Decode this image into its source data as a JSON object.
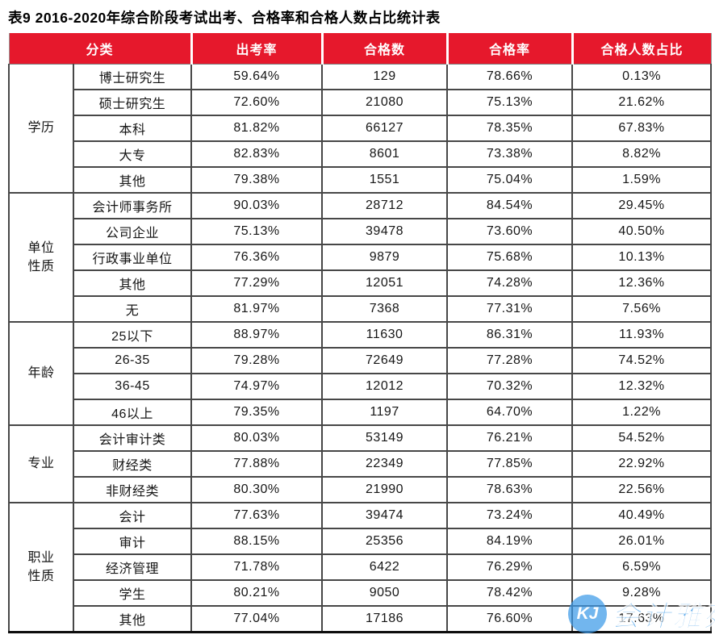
{
  "page": {
    "title": "表9  2016-2020年综合阶段考试出考、合格率和合格人数占比统计表"
  },
  "colors": {
    "header_bg": "#e6182c",
    "header_text": "#ffffff",
    "watermark_blue": "#2f93e6"
  },
  "table": {
    "headers": [
      "分类",
      "出考率",
      "合格数",
      "合格率",
      "合格人数占比"
    ],
    "groups": [
      {
        "label": "学历",
        "rows": [
          [
            "博士研究生",
            "59.64%",
            "129",
            "78.66%",
            "0.13%"
          ],
          [
            "硕士研究生",
            "72.60%",
            "21080",
            "75.13%",
            "21.62%"
          ],
          [
            "本科",
            "81.82%",
            "66127",
            "78.35%",
            "67.83%"
          ],
          [
            "大专",
            "82.83%",
            "8601",
            "73.38%",
            "8.82%"
          ],
          [
            "其他",
            "79.38%",
            "1551",
            "75.04%",
            "1.59%"
          ]
        ]
      },
      {
        "label": "单位性质",
        "rows": [
          [
            "会计师事务所",
            "90.03%",
            "28712",
            "84.54%",
            "29.45%"
          ],
          [
            "公司企业",
            "75.13%",
            "39478",
            "73.60%",
            "40.50%"
          ],
          [
            "行政事业单位",
            "76.36%",
            "9879",
            "75.68%",
            "10.13%"
          ],
          [
            "其他",
            "77.29%",
            "12051",
            "74.28%",
            "12.36%"
          ],
          [
            "无",
            "81.97%",
            "7368",
            "77.31%",
            "7.56%"
          ]
        ]
      },
      {
        "label": "年龄",
        "rows": [
          [
            "25以下",
            "88.97%",
            "11630",
            "86.31%",
            "11.93%"
          ],
          [
            "26-35",
            "79.28%",
            "72649",
            "77.28%",
            "74.52%"
          ],
          [
            "36-45",
            "74.97%",
            "12012",
            "70.32%",
            "12.32%"
          ],
          [
            "46以上",
            "79.35%",
            "1197",
            "64.70%",
            "1.22%"
          ]
        ]
      },
      {
        "label": "专业",
        "rows": [
          [
            "会计审计类",
            "80.03%",
            "53149",
            "76.21%",
            "54.52%"
          ],
          [
            "财经类",
            "77.88%",
            "22349",
            "77.85%",
            "22.92%"
          ],
          [
            "非财经类",
            "80.30%",
            "21990",
            "78.63%",
            "22.56%"
          ]
        ]
      },
      {
        "label": "职业性质",
        "rows": [
          [
            "会计",
            "77.63%",
            "39474",
            "73.24%",
            "40.49%"
          ],
          [
            "审计",
            "88.15%",
            "25356",
            "84.19%",
            "26.01%"
          ],
          [
            "经济管理",
            "71.78%",
            "6422",
            "76.29%",
            "6.59%"
          ],
          [
            "学生",
            "80.21%",
            "9050",
            "78.42%",
            "9.28%"
          ],
          [
            "其他",
            "77.04%",
            "17186",
            "76.60%",
            "17.63%"
          ]
        ]
      }
    ]
  },
  "watermark": {
    "icon_text": "KJ",
    "label": "会计雅苑"
  }
}
